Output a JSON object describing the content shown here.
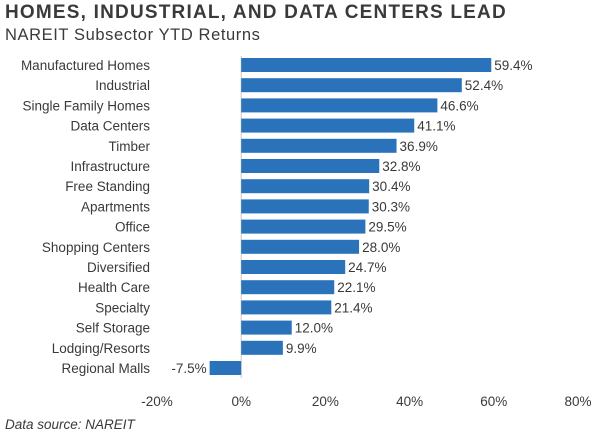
{
  "title": "HOMES, INDUSTRIAL, AND DATA CENTERS LEAD",
  "subtitle": "NAREIT Subsector YTD Returns",
  "source": "Data source: NAREIT",
  "colors": {
    "bar": "#2a73bb",
    "axis": "#c8c8c8",
    "text": "#3a3a3a"
  },
  "chart_data": {
    "type": "bar",
    "orientation": "horizontal",
    "categories": [
      "Manufactured Homes",
      "Industrial",
      "Single Family Homes",
      "Data Centers",
      "Timber",
      "Infrastructure",
      "Free Standing",
      "Apartments",
      "Office",
      "Shopping Centers",
      "Diversified",
      "Health Care",
      "Specialty",
      "Self Storage",
      "Lodging/Resorts",
      "Regional Malls"
    ],
    "values": [
      59.4,
      52.4,
      46.6,
      41.1,
      36.9,
      32.8,
      30.4,
      30.3,
      29.5,
      28.0,
      24.7,
      22.1,
      21.4,
      12.0,
      9.9,
      -7.5
    ],
    "value_labels": [
      "59.4%",
      "52.4%",
      "46.6%",
      "41.1%",
      "36.9%",
      "32.8%",
      "30.4%",
      "30.3%",
      "29.5%",
      "28.0%",
      "24.7%",
      "22.1%",
      "21.4%",
      "12.0%",
      "9.9%",
      "-7.5%"
    ],
    "xlim": [
      -20,
      80
    ],
    "xticks": [
      -20,
      0,
      20,
      40,
      60,
      80
    ],
    "xtick_labels": [
      "-20%",
      "0%",
      "20%",
      "40%",
      "60%",
      "80%"
    ],
    "grid": false,
    "legend": "none"
  }
}
